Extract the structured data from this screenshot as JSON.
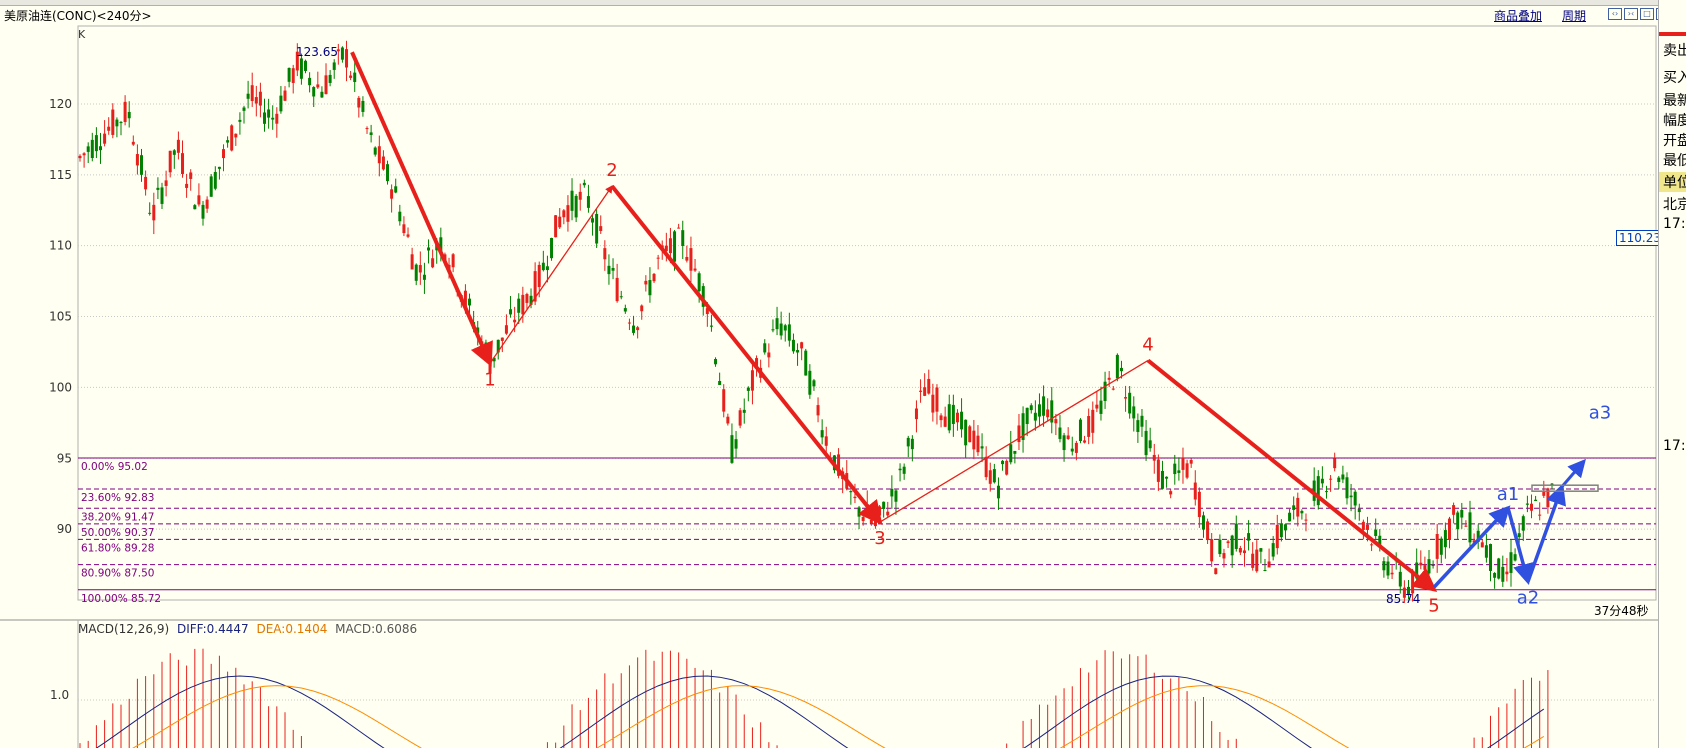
{
  "header": {
    "title": "美原油连(CONC)<240分>",
    "links": [
      "商品叠加",
      "周期"
    ]
  },
  "chart_data": {
    "type": "candlestick",
    "title": "美原油连(CONC)<240分>",
    "main_label": "K",
    "ylim": [
      85.0,
      125.5
    ],
    "y_ticks": [
      90,
      95,
      100,
      105,
      110,
      115,
      120
    ],
    "price_tag": "110.23",
    "timer": "37分48秒",
    "high_label": "123.65",
    "low_label": "85.74",
    "price_path": [
      116.2,
      118.0,
      119.5,
      112.0,
      117.0,
      112.5,
      116.5,
      120.5,
      119.0,
      122.8,
      121.0,
      123.65,
      117.5,
      114.0,
      108.0,
      110.5,
      106.0,
      101.8,
      105.0,
      107.5,
      112.5,
      113.5,
      108.0,
      104.5,
      109.0,
      110.5,
      106.0,
      95.5,
      101.0,
      104.5,
      102.0,
      96.0,
      92.0,
      90.2,
      93.5,
      100.0,
      98.0,
      96.5,
      93.0,
      97.0,
      99.0,
      96.0,
      97.5,
      101.5,
      97.0,
      93.0,
      94.5,
      87.8,
      89.5,
      87.5,
      90.5,
      92.0,
      94.5,
      91.5,
      88.0,
      85.74,
      88.0,
      91.0,
      89.5,
      86.2,
      91.0,
      92.5
    ],
    "fibonacci": [
      {
        "label": "0.00% 95.02",
        "price": 95.02
      },
      {
        "label": "23.60% 92.83",
        "price": 92.83
      },
      {
        "label": "38.20% 91.47",
        "price": 91.47
      },
      {
        "label": "50.00% 90.37",
        "price": 90.37
      },
      {
        "label": "61.80% 89.28",
        "price": 89.28
      },
      {
        "label": "80.90% 87.50",
        "price": 87.5
      },
      {
        "label": "100.00% 85.72",
        "price": 85.72
      }
    ],
    "wave_points": [
      {
        "label": "",
        "price": 123.65
      },
      {
        "label": "1",
        "price": 101.7
      },
      {
        "label": "2",
        "price": 114.2
      },
      {
        "label": "3",
        "price": 90.5
      },
      {
        "label": "4",
        "price": 101.9
      },
      {
        "label": "5",
        "price": 85.74
      }
    ],
    "subwave_points": [
      {
        "label": "a1",
        "price": 91.5
      },
      {
        "label": "a2",
        "price": 86.3
      },
      {
        "label": "a3",
        "price": 93.0
      }
    ],
    "macd": {
      "label": "MACD(12,26,9)",
      "diff_label": "DIFF:0.4447",
      "dea_label": "DEA:0.1404",
      "macd_label": "MACD:0.6086",
      "y_tick": "1.0",
      "diff_color": "#1a237e",
      "dea_color": "#ff8c00",
      "hist_color": "#e8201c"
    }
  },
  "right_panel": {
    "items": [
      "卖出",
      "买入",
      "最新",
      "幅度",
      "开盘",
      "最低",
      "单位",
      "北京",
      "17:",
      "17:"
    ]
  },
  "colors": {
    "background": "#fffff2",
    "up_candle": "#e8201c",
    "down_candle": "#008000",
    "wave_arrow": "#e8201c",
    "subwave_arrow": "#3050e0",
    "fib_line": "#800080",
    "grid": "#c8c8c8"
  }
}
